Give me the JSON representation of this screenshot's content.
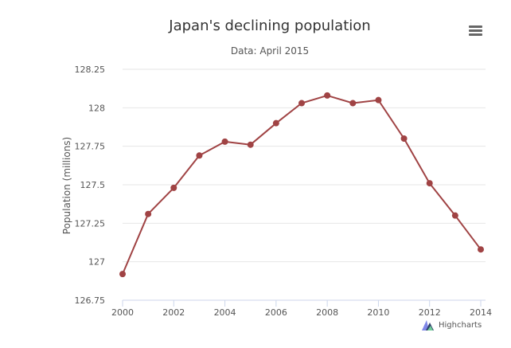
{
  "chart_data": {
    "type": "line",
    "title": "Japan's declining population",
    "subtitle": "Data: April 2015",
    "xlabel": "",
    "ylabel": "Population (millions)",
    "x": [
      2000,
      2001,
      2002,
      2003,
      2004,
      2005,
      2006,
      2007,
      2008,
      2009,
      2010,
      2011,
      2012,
      2013,
      2014
    ],
    "series": [
      {
        "values": [
          126.92,
          127.31,
          127.48,
          127.69,
          127.78,
          127.76,
          127.9,
          128.03,
          128.08,
          128.03,
          128.05,
          127.8,
          127.51,
          127.3,
          127.08
        ],
        "color": "#a04344"
      }
    ],
    "xlim": [
      2000,
      2014
    ],
    "ylim": [
      126.75,
      128.25
    ],
    "xticks": [
      2000,
      2002,
      2004,
      2006,
      2008,
      2010,
      2012,
      2014
    ],
    "yticks": [
      126.75,
      127,
      127.25,
      127.5,
      127.75,
      128,
      128.25
    ],
    "ytick_labels": [
      "126.75",
      "127",
      "127.25",
      "127.5",
      "127.75",
      "128",
      "128.25"
    ],
    "grid": true,
    "legend": "none"
  },
  "menu": {
    "icon": "hamburger-menu-icon"
  },
  "credits": {
    "label": "Highcharts",
    "icon": "highcharts-logo-icon"
  }
}
